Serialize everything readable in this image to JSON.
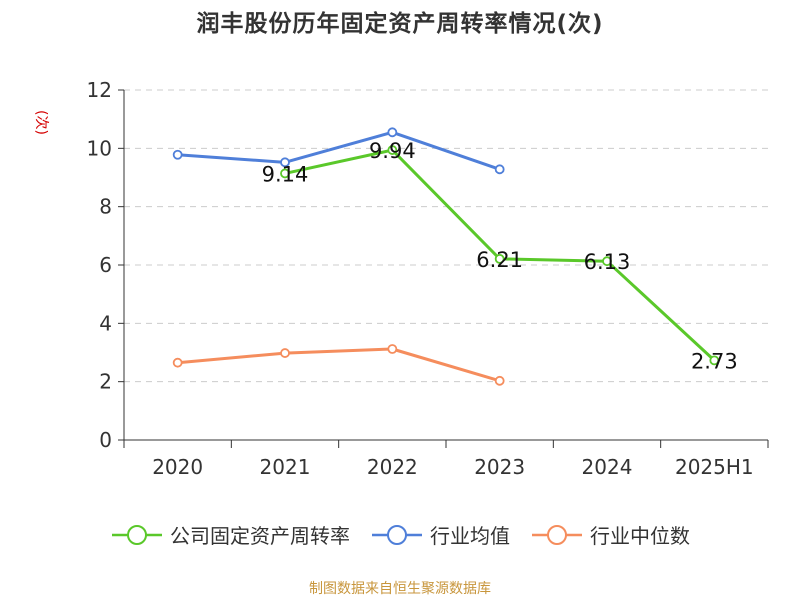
{
  "title": "润丰股份历年固定资产周转率情况(次)",
  "unit": "(次)",
  "source": "制图数据来自恒生聚源数据库",
  "chart_data": {
    "type": "line",
    "categories": [
      "2020",
      "2021",
      "2022",
      "2023",
      "2024",
      "2025H1"
    ],
    "ylim": [
      0,
      12
    ],
    "yticks": [
      "0",
      "2",
      "4",
      "6",
      "8",
      "10",
      "12"
    ],
    "grid": true,
    "legend_position": "bottom",
    "series": [
      {
        "name": "公司固定资产周转率",
        "color": "#5ac82a",
        "values": [
          null,
          9.14,
          9.94,
          6.21,
          6.13,
          2.73
        ],
        "labels": [
          "",
          "9.14",
          "9.94",
          "6.21",
          "6.13",
          "2.73"
        ]
      },
      {
        "name": "行业均值",
        "color": "#4f7fd9",
        "values": [
          9.78,
          9.52,
          10.55,
          9.28,
          null,
          null
        ]
      },
      {
        "name": "行业中位数",
        "color": "#f58d5d",
        "values": [
          2.65,
          2.98,
          3.12,
          2.03,
          null,
          null
        ]
      }
    ]
  }
}
